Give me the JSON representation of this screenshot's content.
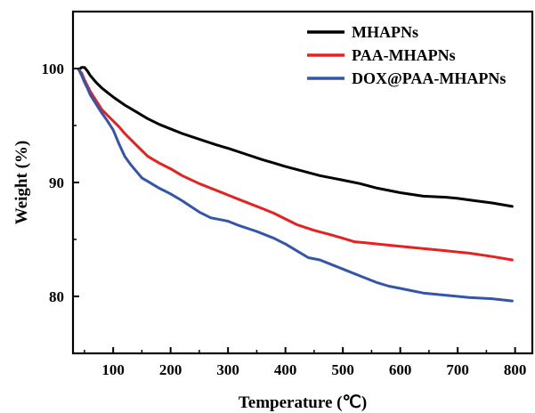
{
  "chart_data": {
    "type": "line",
    "xlabel": "Temperature (℃)",
    "ylabel": "Weight (%)",
    "xlim": [
      30,
      830
    ],
    "ylim": [
      75,
      105
    ],
    "xticks": [
      100,
      200,
      300,
      400,
      500,
      600,
      700,
      800
    ],
    "yticks": [
      80,
      90,
      100
    ],
    "grid": false,
    "legend_position": "top-right",
    "series": [
      {
        "name": "MHAPNs",
        "color": "#000000",
        "x": [
          40,
          45,
          50,
          55,
          60,
          70,
          80,
          90,
          100,
          120,
          140,
          160,
          180,
          200,
          220,
          250,
          280,
          300,
          330,
          360,
          380,
          400,
          430,
          460,
          500,
          530,
          560,
          600,
          640,
          680,
          700,
          730,
          760,
          795
        ],
        "y": [
          99.9,
          100.1,
          100.1,
          99.8,
          99.4,
          98.8,
          98.3,
          97.9,
          97.5,
          96.8,
          96.2,
          95.6,
          95.1,
          94.7,
          94.3,
          93.8,
          93.3,
          93.0,
          92.5,
          92.0,
          91.7,
          91.4,
          91.0,
          90.6,
          90.2,
          89.9,
          89.5,
          89.1,
          88.8,
          88.7,
          88.6,
          88.4,
          88.2,
          87.9
        ]
      },
      {
        "name": "PAA-MHAPNs",
        "color": "#e8201f",
        "x": [
          40,
          45,
          50,
          55,
          60,
          70,
          80,
          90,
          100,
          110,
          120,
          140,
          160,
          180,
          200,
          220,
          250,
          280,
          300,
          330,
          360,
          380,
          400,
          420,
          450,
          480,
          500,
          520,
          540,
          560,
          600,
          640,
          680,
          720,
          760,
          795
        ],
        "y": [
          99.9,
          99.6,
          99.0,
          98.5,
          98.0,
          97.2,
          96.4,
          95.9,
          95.4,
          94.9,
          94.3,
          93.3,
          92.3,
          91.7,
          91.2,
          90.6,
          89.9,
          89.3,
          88.9,
          88.3,
          87.7,
          87.3,
          86.8,
          86.3,
          85.8,
          85.4,
          85.1,
          84.8,
          84.7,
          84.6,
          84.4,
          84.2,
          84.0,
          83.8,
          83.5,
          83.2
        ]
      },
      {
        "name": "DOX@PAA-MHAPNs",
        "color": "#3355aa",
        "x": [
          40,
          45,
          50,
          55,
          60,
          70,
          80,
          90,
          100,
          110,
          120,
          130,
          140,
          150,
          160,
          180,
          200,
          220,
          250,
          270,
          300,
          320,
          350,
          380,
          400,
          420,
          440,
          460,
          480,
          500,
          530,
          560,
          580,
          600,
          620,
          640,
          680,
          720,
          760,
          795
        ],
        "y": [
          99.9,
          99.4,
          98.8,
          98.3,
          97.7,
          96.9,
          96.1,
          95.4,
          94.6,
          93.4,
          92.3,
          91.6,
          91.0,
          90.4,
          90.1,
          89.5,
          89.0,
          88.4,
          87.4,
          86.9,
          86.6,
          86.2,
          85.7,
          85.1,
          84.6,
          84.0,
          83.4,
          83.2,
          82.8,
          82.4,
          81.8,
          81.2,
          80.9,
          80.7,
          80.5,
          80.3,
          80.1,
          79.9,
          79.8,
          79.6
        ]
      }
    ]
  }
}
